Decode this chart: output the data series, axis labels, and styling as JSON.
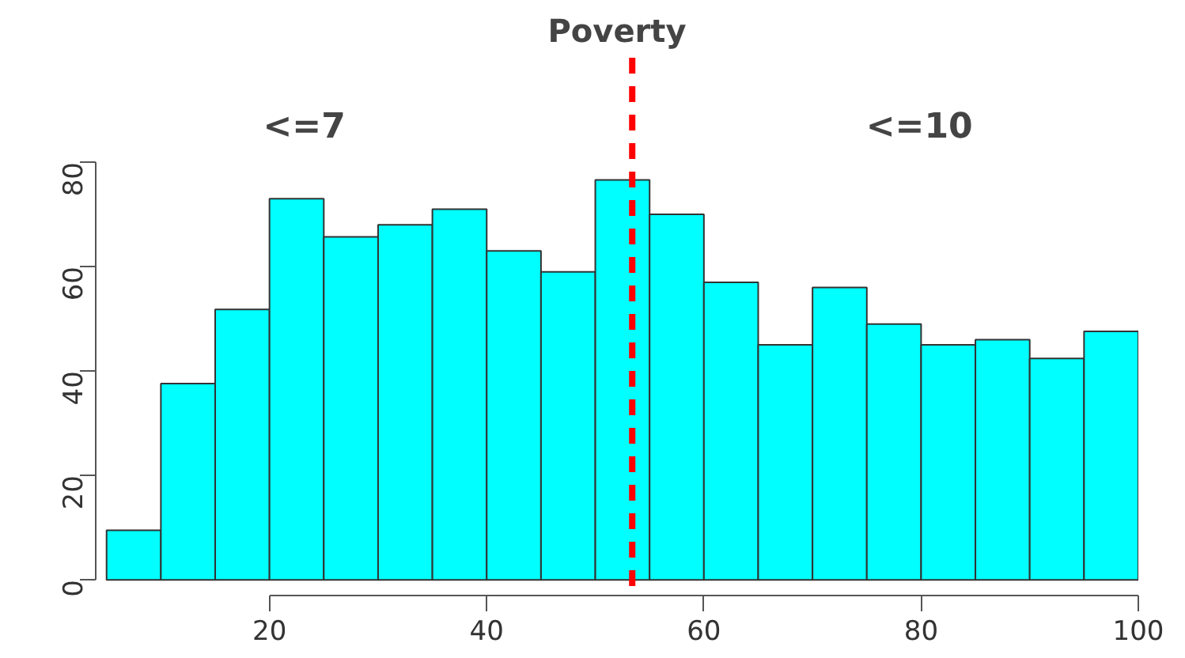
{
  "chart_data": {
    "type": "histogram",
    "title": "Poverty",
    "bins": [
      5,
      10,
      15,
      20,
      25,
      30,
      35,
      40,
      45,
      50,
      55,
      60,
      65,
      70,
      75,
      80,
      85,
      90,
      95,
      100
    ],
    "values": [
      9.5,
      37.6,
      51.8,
      73,
      65.7,
      68,
      71,
      63,
      59,
      76.6,
      70,
      57,
      45,
      56,
      49,
      45,
      46,
      42.4,
      47.6
    ],
    "color": "#00ffff",
    "xlim": [
      4,
      100
    ],
    "ylim": [
      -3,
      100
    ],
    "xticks": [
      20,
      40,
      60,
      80,
      100
    ],
    "yticks": [
      0,
      20,
      40,
      60,
      80
    ],
    "grid": false,
    "ref_lines": [
      {
        "axis": "x",
        "value": 53.4,
        "color": "#ff0000",
        "line_style": "dashed"
      }
    ],
    "annotations": [
      "<=7",
      "<=10"
    ]
  }
}
